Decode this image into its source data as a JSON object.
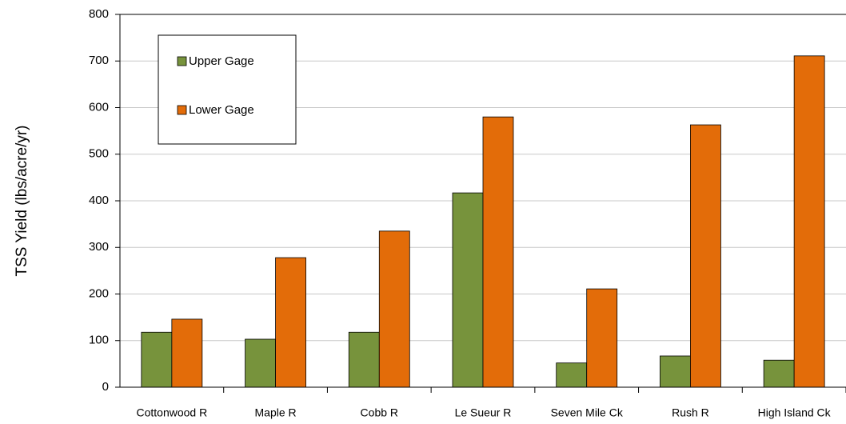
{
  "chart_data": {
    "type": "bar",
    "y_label": "TSS Yield (lbs/acre/yr)",
    "categories": [
      "Cottonwood R",
      "Maple R",
      "Cobb R",
      "Le Sueur R",
      "Seven Mile Ck",
      "Rush R",
      "High Island Ck"
    ],
    "series": [
      {
        "name": "Upper Gage",
        "color": "#77933c",
        "values": [
          118,
          103,
          118,
          417,
          52,
          67,
          58
        ]
      },
      {
        "name": "Lower Gage",
        "color": "#e36c09",
        "values": [
          146,
          278,
          335,
          580,
          211,
          563,
          711
        ]
      }
    ],
    "ylim": [
      0,
      800
    ],
    "yticks": [
      0,
      100,
      200,
      300,
      400,
      500,
      600,
      700,
      800
    ],
    "grid": true
  }
}
